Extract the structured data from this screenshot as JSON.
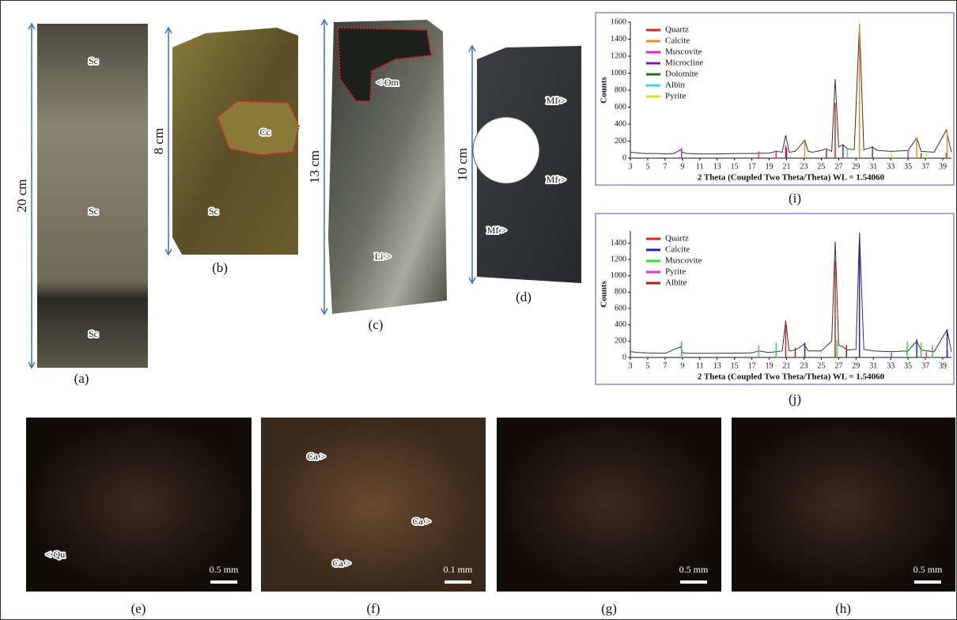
{
  "photos": [
    {
      "label": "(a)",
      "scale": "20 cm",
      "marks": [
        "Sc",
        "Sc",
        "Sc"
      ]
    },
    {
      "label": "(b)",
      "scale": "8 cm",
      "marks": [
        "Cc",
        "Sc"
      ]
    },
    {
      "label": "(c)",
      "scale": "13 cm",
      "marks": [
        "< Om",
        "Li >"
      ]
    },
    {
      "label": "(d)",
      "scale": "10 cm",
      "marks": [
        "Mf >",
        "Mf >",
        "Mf >"
      ]
    },
    {
      "label": "(e)",
      "scale": "0.5 mm",
      "marks": [
        "< Qu"
      ]
    },
    {
      "label": "(f)",
      "scale": "0.1 mm",
      "marks": [
        "Ca >",
        "Ca >",
        "Ca >"
      ]
    },
    {
      "label": "(g)",
      "scale": "0.5 mm"
    },
    {
      "label": "(h)",
      "scale": "0.5 mm"
    }
  ],
  "chart_data": [
    {
      "type": "line",
      "caption": "(i)",
      "xlabel": "2 Theta (Coupled Two Theta/Theta) WL = 1.54060",
      "ylabel": "Counts",
      "xlim": [
        3,
        40
      ],
      "ylim": [
        0,
        1600
      ],
      "xticks": [
        3,
        5,
        7,
        9,
        11,
        13,
        15,
        17,
        19,
        21,
        23,
        25,
        27,
        29,
        31,
        33,
        35,
        37,
        39
      ],
      "yticks": [
        0,
        200,
        400,
        600,
        800,
        1000,
        1200,
        1400,
        1600
      ],
      "legend": "upper left",
      "pattern": {
        "color": "#333333",
        "x": [
          3,
          4,
          5,
          6,
          7,
          8,
          8.8,
          9,
          9.5,
          11,
          13,
          15,
          17,
          19,
          19.8,
          20.5,
          20.9,
          21.3,
          22,
          23.1,
          23.5,
          24,
          25,
          25.6,
          26.2,
          26.6,
          27,
          27.5,
          28,
          28.8,
          29.4,
          29.9,
          30.9,
          31.5,
          33,
          35,
          36,
          36.5,
          38,
          39.4,
          40
        ],
        "values": [
          70,
          60,
          55,
          55,
          50,
          55,
          100,
          70,
          55,
          50,
          50,
          55,
          55,
          60,
          80,
          70,
          270,
          70,
          80,
          210,
          80,
          70,
          90,
          110,
          80,
          930,
          130,
          160,
          110,
          100,
          1580,
          100,
          130,
          90,
          80,
          90,
          240,
          80,
          70,
          330,
          70
        ]
      },
      "series": [
        {
          "name": "Quartz",
          "color": "#e02020",
          "x": [
            20.9,
            26.6,
            36.5,
            39.4
          ],
          "values": [
            150,
            650,
            60,
            60
          ]
        },
        {
          "name": "Calcite",
          "color": "#f08a20",
          "x": [
            23.1,
            29.4,
            36.0,
            39.5
          ],
          "values": [
            200,
            1570,
            250,
            330
          ]
        },
        {
          "name": "Muscovite",
          "color": "#e020e0",
          "x": [
            8.9,
            17.8,
            19.8,
            35.0
          ],
          "values": [
            120,
            80,
            90,
            90
          ]
        },
        {
          "name": "Microcline",
          "color": "#7020a0",
          "x": [
            21.0,
            25.6,
            27.5
          ],
          "values": [
            120,
            100,
            150
          ]
        },
        {
          "name": "Dolomite",
          "color": "#207020",
          "x": [
            30.9
          ],
          "values": [
            140
          ]
        },
        {
          "name": "Albin",
          "color": "#40d0e0",
          "x": [
            28.0
          ],
          "values": [
            110
          ]
        },
        {
          "name": "Pyrite",
          "color": "#e0e020",
          "x": [
            33.1,
            37.1
          ],
          "values": [
            70,
            60
          ]
        }
      ]
    },
    {
      "type": "line",
      "caption": "(j)",
      "xlabel": "2 Theta (Coupled Two Theta/Theta) WL = 1.54060",
      "ylabel": "Counts",
      "xlim": [
        3,
        40
      ],
      "ylim": [
        0,
        1550
      ],
      "xticks": [
        3,
        5,
        7,
        9,
        11,
        13,
        15,
        17,
        19,
        21,
        23,
        25,
        27,
        29,
        31,
        33,
        35,
        37,
        39
      ],
      "yticks": [
        0,
        200,
        400,
        600,
        800,
        1000,
        1200,
        1400
      ],
      "legend": "upper left",
      "pattern": {
        "color": "#333333",
        "x": [
          3,
          4,
          5,
          7,
          8.8,
          9,
          9.5,
          13,
          17,
          17.8,
          19,
          20.5,
          20.9,
          21.3,
          22,
          23,
          23.5,
          25,
          26.2,
          26.6,
          27,
          27.5,
          28,
          29,
          29.4,
          29.9,
          31,
          33,
          35,
          36,
          36.5,
          38,
          39.5,
          40
        ],
        "values": [
          70,
          60,
          55,
          50,
          130,
          60,
          50,
          50,
          55,
          80,
          60,
          80,
          450,
          80,
          90,
          160,
          80,
          80,
          200,
          1420,
          150,
          130,
          90,
          100,
          1530,
          100,
          80,
          70,
          80,
          200,
          90,
          70,
          340,
          70
        ]
      },
      "series": [
        {
          "name": "Quartz",
          "color": "#e02020",
          "x": [
            20.9,
            26.6,
            36.5,
            39.5
          ],
          "values": [
            430,
            1190,
            100,
            80
          ]
        },
        {
          "name": "Calcite",
          "color": "#2020c0",
          "x": [
            23.1,
            29.4,
            36.0,
            39.5
          ],
          "values": [
            180,
            1400,
            220,
            340
          ]
        },
        {
          "name": "Muscovite",
          "color": "#30e030",
          "x": [
            8.9,
            17.8,
            19.8,
            26.8,
            34.9,
            36.5,
            37.8
          ],
          "values": [
            200,
            150,
            180,
            220,
            200,
            180,
            150
          ]
        },
        {
          "name": "Pyrite",
          "color": "#e030e0",
          "x": [
            33.1,
            37.1
          ],
          "values": [
            60,
            70
          ]
        },
        {
          "name": "Albite",
          "color": "#a02020",
          "x": [
            22.0,
            27.9
          ],
          "values": [
            120,
            150
          ]
        }
      ]
    }
  ]
}
